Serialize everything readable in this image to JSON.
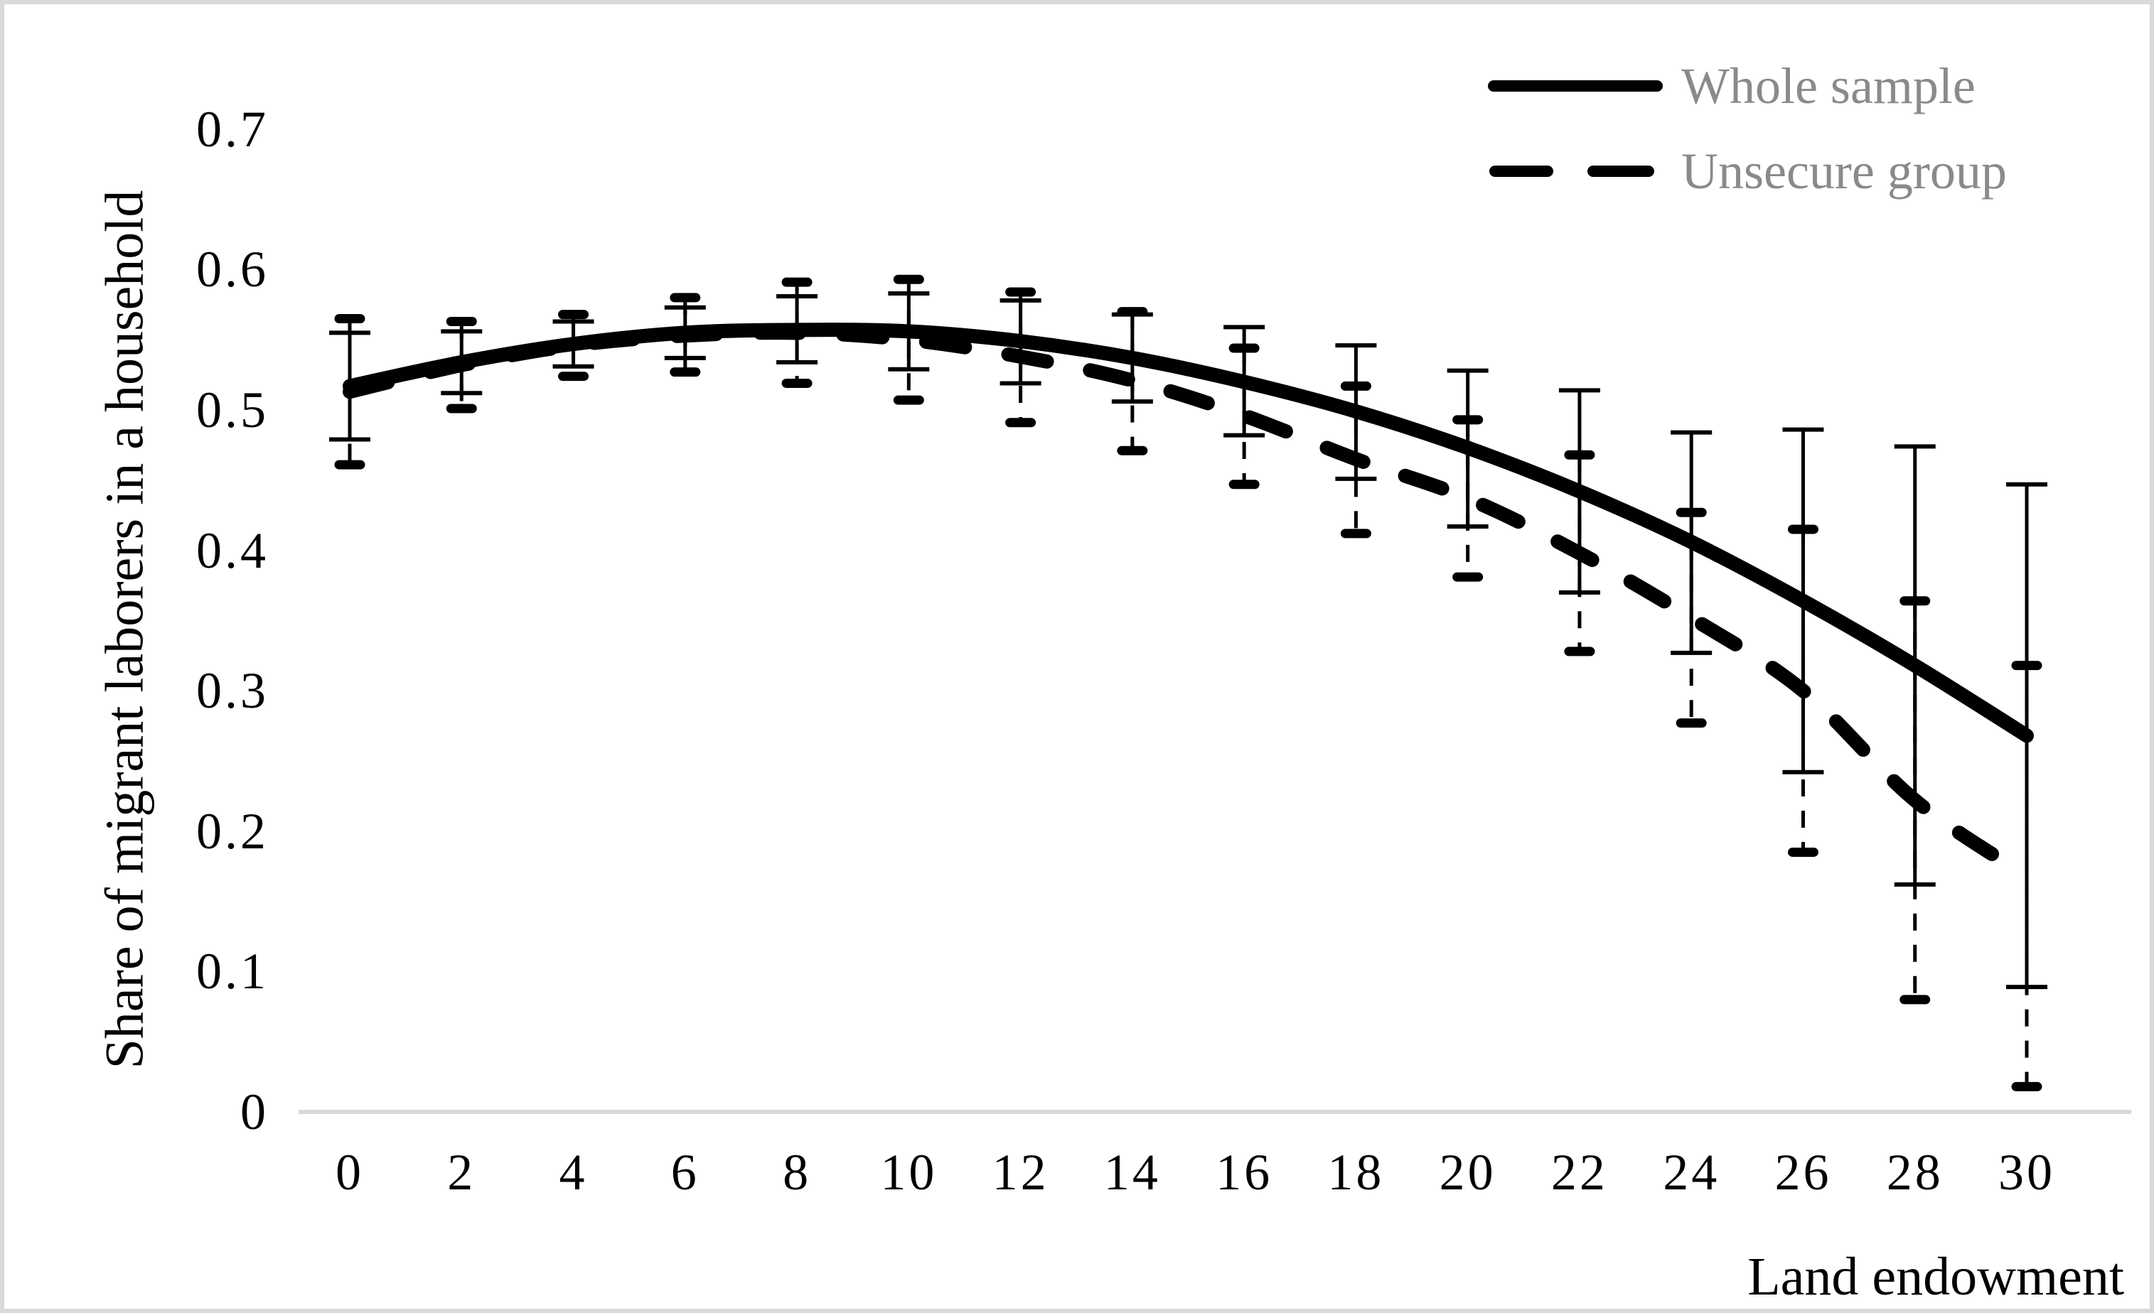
{
  "chart_data": {
    "type": "line",
    "title": "",
    "xlabel": "Land endowment",
    "ylabel": "Share of migrant laborers in a household",
    "x": [
      0,
      2,
      4,
      6,
      8,
      10,
      12,
      14,
      16,
      18,
      20,
      22,
      24,
      26,
      28,
      30
    ],
    "xtick_labels": [
      "0",
      "2",
      "4",
      "6",
      "8",
      "10",
      "12",
      "14",
      "16",
      "18",
      "20",
      "22",
      "24",
      "26",
      "28",
      "30"
    ],
    "yticks": [
      {
        "value": 0.0,
        "label": "0"
      },
      {
        "value": 0.1,
        "label": "0.1"
      },
      {
        "value": 0.2,
        "label": "0.2"
      },
      {
        "value": 0.3,
        "label": "0.3"
      },
      {
        "value": 0.4,
        "label": "0.4"
      },
      {
        "value": 0.5,
        "label": "0.5"
      },
      {
        "value": 0.6,
        "label": "0.6"
      },
      {
        "value": 0.7,
        "label": "0.7"
      }
    ],
    "ylim": [
      0,
      0.74
    ],
    "xlim": [
      -1,
      31.5
    ],
    "grid": false,
    "error_bars": true,
    "legend_position": "top-right",
    "axis_line_color": "#d9d9d9",
    "line_color": "#000000",
    "legend_text_color": "#8a8a8a",
    "series": [
      {
        "name": "Whole sample",
        "line_style": "solid",
        "color": "#000000",
        "values": [
          0.517,
          0.534,
          0.547,
          0.555,
          0.557,
          0.556,
          0.549,
          0.537,
          0.52,
          0.499,
          0.473,
          0.442,
          0.406,
          0.364,
          0.318,
          0.268
        ],
        "ci_low": [
          0.479,
          0.512,
          0.531,
          0.537,
          0.534,
          0.529,
          0.519,
          0.506,
          0.482,
          0.451,
          0.417,
          0.37,
          0.327,
          0.242,
          0.162,
          0.089
        ],
        "ci_high": [
          0.555,
          0.556,
          0.563,
          0.573,
          0.581,
          0.583,
          0.578,
          0.568,
          0.559,
          0.546,
          0.528,
          0.514,
          0.484,
          0.486,
          0.474,
          0.447
        ]
      },
      {
        "name": "Unsecure group",
        "line_style": "dashed",
        "color": "#000000",
        "values": [
          0.513,
          0.532,
          0.546,
          0.553,
          0.555,
          0.55,
          0.538,
          0.521,
          0.496,
          0.465,
          0.437,
          0.398,
          0.352,
          0.3,
          0.222,
          0.168
        ],
        "ci_low": [
          0.461,
          0.501,
          0.524,
          0.527,
          0.519,
          0.507,
          0.491,
          0.471,
          0.447,
          0.412,
          0.381,
          0.328,
          0.277,
          0.185,
          0.08,
          0.018
        ],
        "ci_high": [
          0.565,
          0.563,
          0.568,
          0.58,
          0.591,
          0.593,
          0.584,
          0.57,
          0.544,
          0.517,
          0.493,
          0.468,
          0.427,
          0.415,
          0.364,
          0.318
        ]
      }
    ]
  }
}
